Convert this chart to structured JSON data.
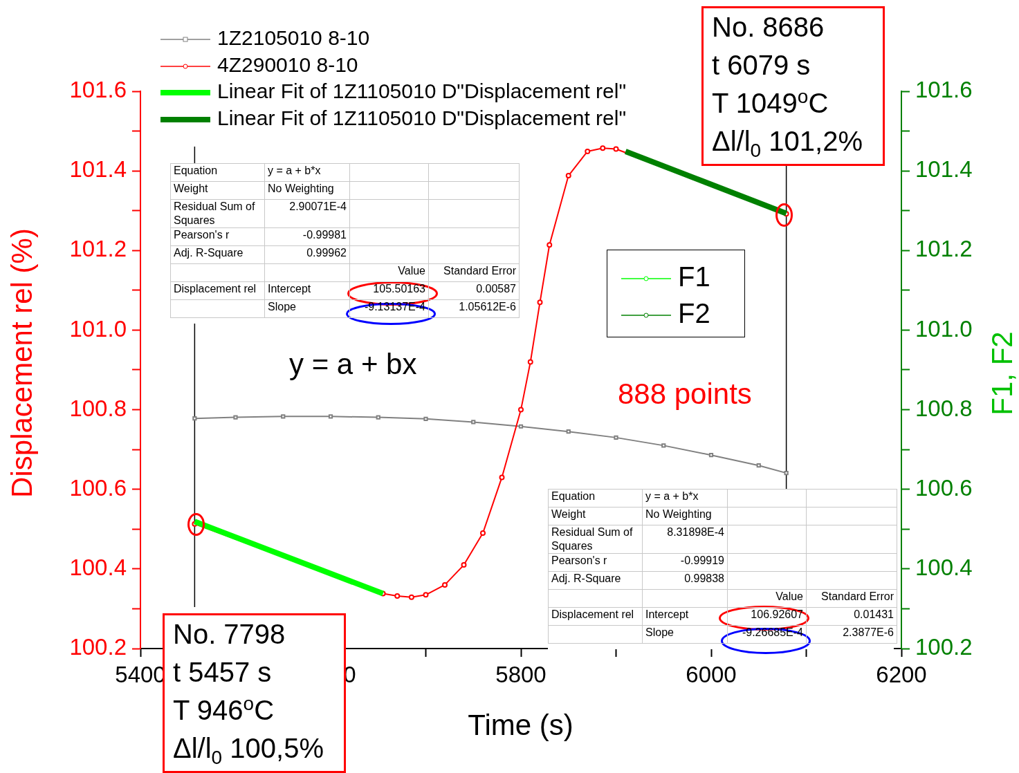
{
  "chart_data": {
    "type": "line",
    "xlabel": "Time (s)",
    "ylabel": "Displacement rel (%)",
    "y2label": "F1, F2",
    "xlim": [
      5400,
      6200
    ],
    "xticks": [
      5400,
      {
        "value": 5500,
        "label": null
      },
      5600,
      {
        "value": 5700,
        "label": null
      },
      5800,
      {
        "value": 5900,
        "label": null
      },
      6000,
      {
        "value": 6100,
        "label": null
      },
      6200
    ],
    "ylim": [
      100.2,
      101.6
    ],
    "yticks": [
      100.2,
      {
        "value": 100.3,
        "label": null
      },
      100.4,
      {
        "value": 100.5,
        "label": null
      },
      100.6,
      {
        "value": 100.7,
        "label": null
      },
      100.8,
      {
        "value": 100.9,
        "label": null
      },
      {
        "value": 101,
        "label": "101.0"
      },
      {
        "value": 101.1,
        "label": null
      },
      101.2,
      {
        "value": 101.3,
        "label": null
      },
      101.4,
      {
        "value": 101.5,
        "label": null
      },
      101.6
    ],
    "y2lim": [
      100.2,
      101.6
    ],
    "y2ticks": [
      100.2,
      {
        "value": 100.3,
        "label": null
      },
      100.4,
      {
        "value": 100.5,
        "label": null
      },
      100.6,
      {
        "value": 100.7,
        "label": null
      },
      100.8,
      {
        "value": 100.9,
        "label": null
      },
      {
        "value": 101,
        "label": "101.0"
      },
      {
        "value": 101.1,
        "label": null
      },
      101.2,
      {
        "value": 101.3,
        "label": null
      },
      101.4,
      {
        "value": 101.5,
        "label": null
      },
      101.6
    ],
    "legend": "top left",
    "series": [
      {
        "name": "1Z2105010 8-10",
        "color": "#808080",
        "marker": "square",
        "x": [
          5457,
          5500,
          5550,
          5600,
          5650,
          5700,
          5750,
          5800,
          5850,
          5900,
          5950,
          6000,
          6050,
          6079
        ],
        "values": [
          100.778,
          100.781,
          100.783,
          100.783,
          100.781,
          100.777,
          100.769,
          100.758,
          100.745,
          100.73,
          100.71,
          100.686,
          100.66,
          100.641
        ]
      },
      {
        "name": "4Z290010 8-10",
        "color": "#ff0000",
        "marker": "circle",
        "x": [
          5457,
          5500,
          5550,
          5600,
          5655,
          5670,
          5685,
          5700,
          5720,
          5740,
          5760,
          5780,
          5800,
          5810,
          5820,
          5830,
          5850,
          5870,
          5886,
          5900,
          5910,
          5950,
          6000,
          6050,
          6079
        ],
        "values": [
          100.513,
          null,
          null,
          null,
          100.338,
          100.332,
          100.329,
          100.335,
          100.36,
          100.41,
          100.49,
          100.63,
          100.8,
          100.92,
          101.07,
          101.214,
          101.388,
          101.449,
          101.457,
          101.455,
          null,
          null,
          null,
          null,
          101.292
        ]
      },
      {
        "name": "Linear Fit of 1Z1105010 D\"Displacement rel\"",
        "color": "#00ff00",
        "x": [
          5457,
          5655
        ],
        "values": [
          100.519,
          100.338
        ]
      },
      {
        "name": "Linear Fit of 1Z1105010 D\"Displacement rel\"",
        "color": "#008000",
        "x": [
          5910,
          6079
        ],
        "values": [
          101.449,
          101.293
        ]
      },
      {
        "name": "F1",
        "color": "#00ff00",
        "marker": "circle",
        "axis": "y2"
      },
      {
        "name": "F2",
        "color": "#008000",
        "marker": "circle",
        "axis": "y2"
      }
    ],
    "ref_lines": [
      {
        "axis": "x",
        "value": 5457,
        "color": "#000000"
      },
      {
        "axis": "x",
        "value": 6079,
        "color": "#000000"
      }
    ],
    "annotations": [
      "No. 8686\nt 6079 s\nT 1049$^{o}$C\nΔl/l$_{0}$ 101,2%",
      "No. 7798\nt 5457 s\nT 946$^{o}$C\nΔl/l$_{0}$ 100,5%",
      "y = a + bx",
      "888 points",
      "Equation\ty = a + b*x\t\t\nWeight\tNo Weighting\t\t\nResidual Sum of Squares\t2.90071E-4\t\t\nPearson's r\t-0.99981\t\t\nAdj. R-Square\t0.99962\t\t\n\t\tValue\tStandard Error\nDisplacement rel\tIntercept\t105.50163\t0.00587\n\tSlope\t-9.13137E-4\t1.05612E-6",
      "Equation\ty = a + b*x\t\t\nWeight\tNo Weighting\t\t\nResidual Sum of Squares\t8.31898E-4\t\t\nPearson's r\t-0.99919\t\t\nAdj. R-Square\t0.99838\t\t\n\t\tValue\tStandard Error\nDisplacement rel\tIntercept\t106.92607\t0.01431\n\tSlope\t-9.26685E-4\t2.3877E-6"
    ]
  }
}
